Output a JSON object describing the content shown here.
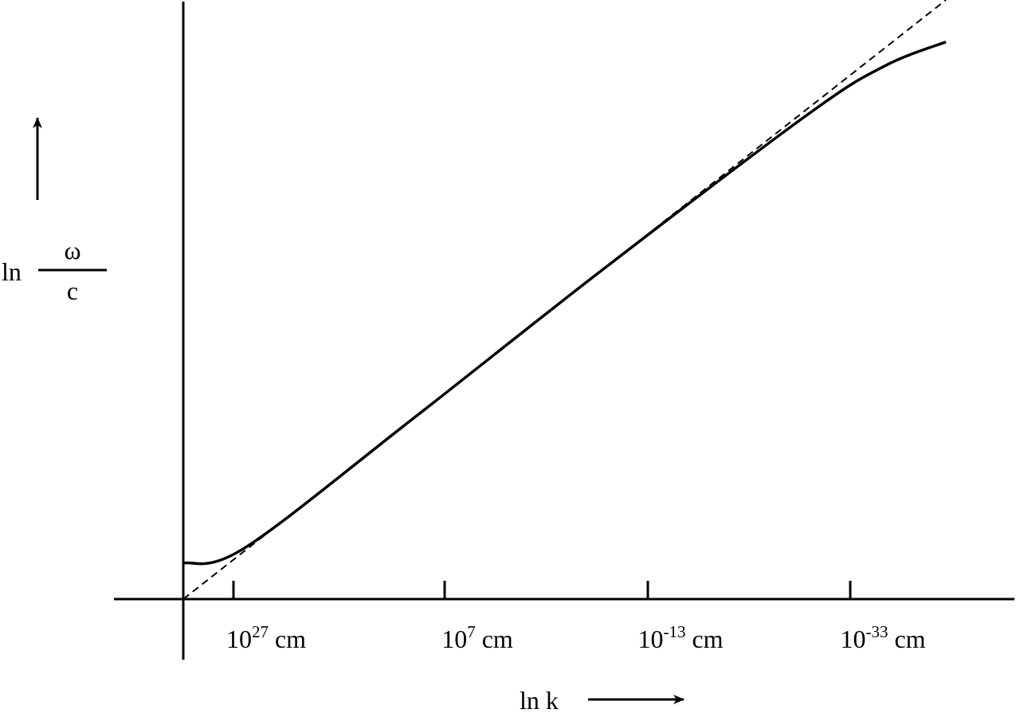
{
  "chart_data": {
    "type": "line",
    "title": "",
    "xlabel": "ln k",
    "ylabel": {
      "prefix": "ln",
      "numerator": "ω",
      "denominator": "c"
    },
    "x_ticks": [
      {
        "base": "10",
        "exponent": "27",
        "unit": "cm"
      },
      {
        "base": "10",
        "exponent": "7",
        "unit": "cm"
      },
      {
        "base": "10",
        "exponent": "-13",
        "unit": "cm"
      },
      {
        "base": "10",
        "exponent": "-33",
        "unit": "cm"
      }
    ],
    "grid": false,
    "legend": "none",
    "series": [
      {
        "style": "solid",
        "points": [
          [
            0.0,
            0.06
          ],
          [
            0.08,
            0.085
          ],
          [
            0.3,
            0.3
          ],
          [
            0.55,
            0.55
          ],
          [
            0.82,
            0.81
          ],
          [
            0.92,
            0.89
          ],
          [
            1.0,
            0.93
          ]
        ]
      },
      {
        "style": "dashed",
        "points": [
          [
            0.0,
            0.0
          ],
          [
            1.0,
            1.0
          ]
        ]
      }
    ]
  }
}
